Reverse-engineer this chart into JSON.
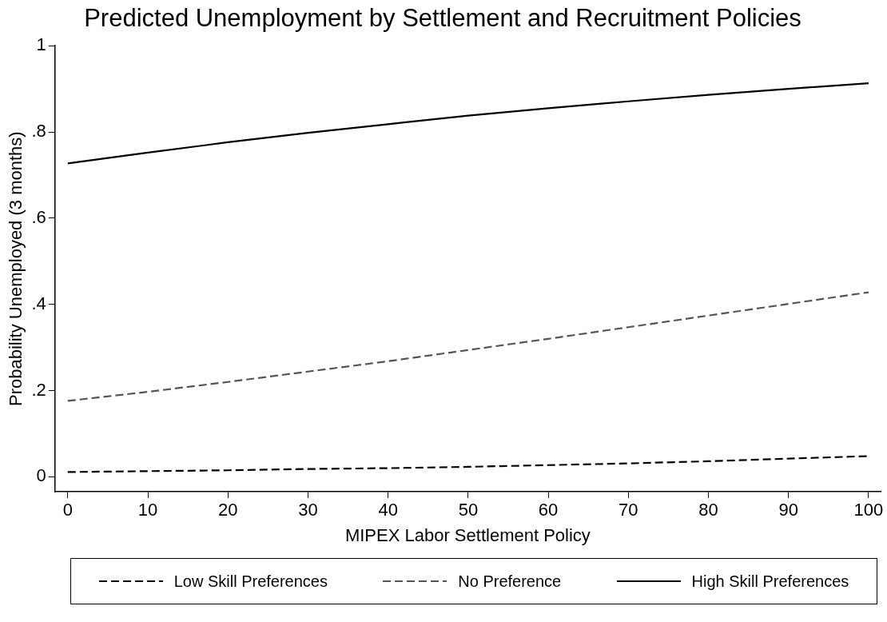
{
  "chart_data": {
    "type": "line",
    "title": "Predicted Unemployment by Settlement and Recruitment Policies",
    "xlabel": "MIPEX Labor Settlement Policy",
    "ylabel": "Probability Unemployed (3 months)",
    "x": [
      0,
      10,
      20,
      30,
      40,
      50,
      60,
      70,
      80,
      90,
      100
    ],
    "series": [
      {
        "name": "Low Skill Preferences",
        "color": "#000000",
        "line_style": "dashed",
        "values": [
          0.011,
          0.013,
          0.015,
          0.018,
          0.02,
          0.023,
          0.027,
          0.031,
          0.036,
          0.042,
          0.048
        ]
      },
      {
        "name": "No Preference",
        "color": "#555555",
        "line_style": "dashed",
        "values": [
          0.176,
          0.197,
          0.22,
          0.244,
          0.268,
          0.294,
          0.32,
          0.347,
          0.374,
          0.401,
          0.428
        ]
      },
      {
        "name": "High Skill Preferences",
        "color": "#000000",
        "line_style": "solid",
        "values": [
          0.727,
          0.752,
          0.776,
          0.798,
          0.818,
          0.838,
          0.855,
          0.871,
          0.886,
          0.9,
          0.913
        ]
      }
    ],
    "xlim": [
      -1.6,
      101.5
    ],
    "xticks": [
      0,
      10,
      20,
      30,
      40,
      50,
      60,
      70,
      80,
      90,
      100
    ],
    "ylim": [
      -0.035,
      1
    ],
    "yticks": [
      0,
      {
        "value": 0.2,
        "label": ".2"
      },
      {
        "value": 0.4,
        "label": ".4"
      },
      {
        "value": 0.6,
        "label": ".6"
      },
      {
        "value": 0.8,
        "label": ".8"
      },
      1
    ],
    "grid": false,
    "legend": "bottom",
    "marker": "none"
  }
}
